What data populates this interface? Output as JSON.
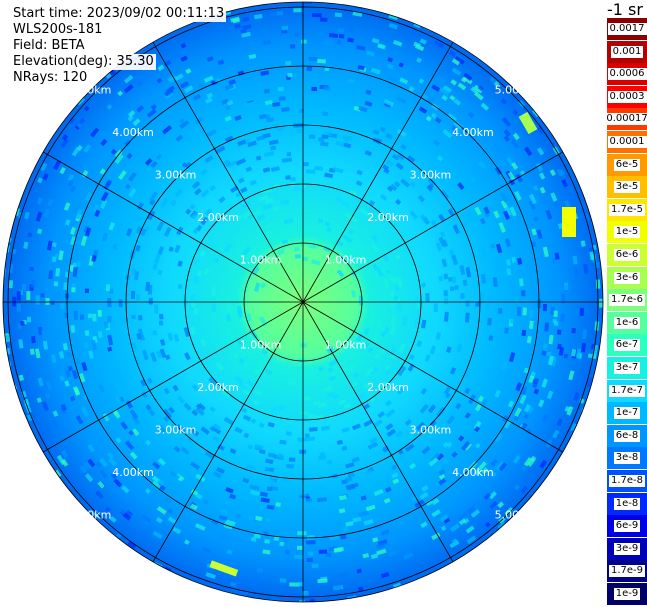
{
  "info": {
    "start_time": "Start time: 2023/09/02 00:11:13",
    "instrument": "WLS200s-181",
    "field": "Field: BETA",
    "elevation": "Elevation(deg): 35.30",
    "nrays": "NRays: 120"
  },
  "colorbar": {
    "unit": "-1 sr",
    "levels": [
      {
        "label": "0.0017",
        "color": "#8b0000"
      },
      {
        "label": "0.001",
        "color": "#b30000"
      },
      {
        "label": "0.0006",
        "color": "#d90000"
      },
      {
        "label": "0.0003",
        "color": "#ff0000"
      },
      {
        "label": "0.00017",
        "color": "#ff3a00"
      },
      {
        "label": "0.0001",
        "color": "#ff7000"
      },
      {
        "label": "6e-5",
        "color": "#ff9900"
      },
      {
        "label": "3e-5",
        "color": "#ffbf00"
      },
      {
        "label": "1.7e-5",
        "color": "#ffe600"
      },
      {
        "label": "1e-5",
        "color": "#f2ff00"
      },
      {
        "label": "6e-6",
        "color": "#ccff33"
      },
      {
        "label": "3e-6",
        "color": "#a8ff50"
      },
      {
        "label": "1.7e-6",
        "color": "#7dff7d"
      },
      {
        "label": "1e-6",
        "color": "#55ff9e"
      },
      {
        "label": "6e-7",
        "color": "#2dffc0"
      },
      {
        "label": "3e-7",
        "color": "#19f0e0"
      },
      {
        "label": "1.7e-7",
        "color": "#10d8ff"
      },
      {
        "label": "1e-7",
        "color": "#00b8ff"
      },
      {
        "label": "6e-8",
        "color": "#0096ff"
      },
      {
        "label": "3e-8",
        "color": "#0078ff"
      },
      {
        "label": "1.7e-8",
        "color": "#0050ff"
      },
      {
        "label": "1e-8",
        "color": "#0028ff"
      },
      {
        "label": "6e-9",
        "color": "#0000e6"
      },
      {
        "label": "3e-9",
        "color": "#0000b8"
      },
      {
        "label": "1.7e-9",
        "color": "#00008b"
      },
      {
        "label": "1e-9",
        "color": "#000066"
      }
    ]
  },
  "rings": [
    {
      "label": "1.00km",
      "km": 1
    },
    {
      "label": "2.00km",
      "km": 2
    },
    {
      "label": "3.00km",
      "km": 3
    },
    {
      "label": "4.00km",
      "km": 4
    },
    {
      "label": "5.00km",
      "km": 5
    }
  ],
  "spokes": 12
}
